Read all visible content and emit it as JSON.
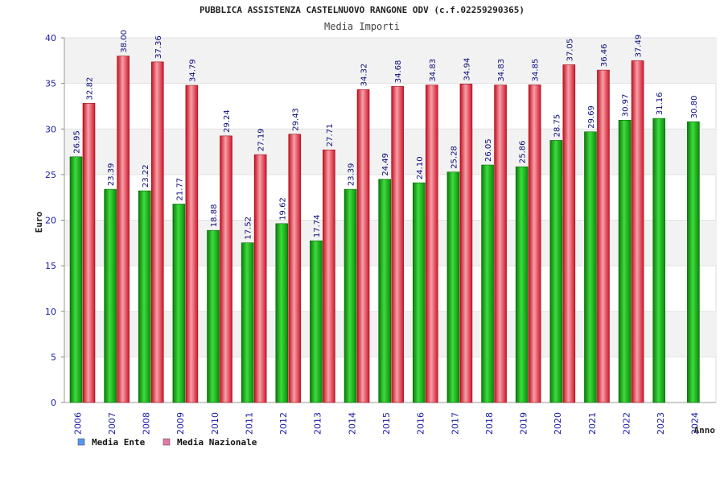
{
  "chart_data": {
    "type": "bar",
    "title": "PUBBLICA ASSISTENZA CASTELNUOVO RANGONE ODV (c.f.02259290365)",
    "subtitle": "Media Importi",
    "xlabel": "Anno",
    "ylabel": "Euro",
    "ylim": [
      0,
      40
    ],
    "yticks": [
      "0",
      "5",
      "10",
      "15",
      "20",
      "25",
      "30",
      "35",
      "40"
    ],
    "grid": true,
    "legend_position": "bottom-left",
    "categories": [
      "2006",
      "2007",
      "2008",
      "2009",
      "2010",
      "2011",
      "2012",
      "2013",
      "2014",
      "2015",
      "2016",
      "2017",
      "2018",
      "2019",
      "2020",
      "2021",
      "2022",
      "2023",
      "2024"
    ],
    "series": [
      {
        "name": "Media Ente",
        "color": "#22bb22",
        "legend_color": "#5599ee",
        "values": [
          26.95,
          23.39,
          23.22,
          21.77,
          18.88,
          17.52,
          19.62,
          17.74,
          23.39,
          24.49,
          24.1,
          25.28,
          26.05,
          25.86,
          28.75,
          29.69,
          30.97,
          31.16,
          30.8
        ],
        "labels": [
          "26.95",
          "23.39",
          "23.22",
          "21.77",
          "18.88",
          "17.52",
          "19.62",
          "17.74",
          "23.39",
          "24.49",
          "24.10",
          "25.28",
          "26.05",
          "25.86",
          "28.75",
          "29.69",
          "30.97",
          "31.16",
          "30.80"
        ]
      },
      {
        "name": "Media Nazionale",
        "color": "#ee2233",
        "legend_color": "#e47aa8",
        "values": [
          32.82,
          38.0,
          37.36,
          34.79,
          29.24,
          27.19,
          29.43,
          27.71,
          34.32,
          34.68,
          34.83,
          34.94,
          34.83,
          34.85,
          37.05,
          36.46,
          37.49,
          null,
          null
        ],
        "labels": [
          "32.82",
          "38.00",
          "37.36",
          "34.79",
          "29.24",
          "27.19",
          "29.43",
          "27.71",
          "34.32",
          "34.68",
          "34.83",
          "34.94",
          "34.83",
          "34.85",
          "37.05",
          "36.46",
          "37.49",
          "",
          ""
        ]
      }
    ]
  }
}
